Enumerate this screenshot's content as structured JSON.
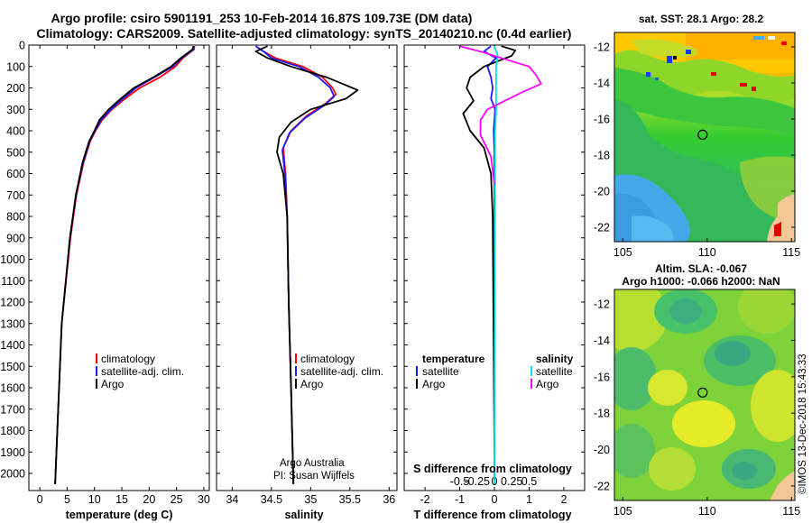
{
  "title": {
    "line1": "Argo profile: csiro 5901191_253 10-Feb-2014 16.87S 109.73E (DM data)",
    "line2": "Climatology: CARS2009. Satellite-adjusted climatology: synTS_20140210.nc (0.4d earlier)"
  },
  "colors": {
    "climatology": "#ff0000",
    "satellite": "#1a1aff",
    "argo": "#000000",
    "salinity_satellite": "#00e5ee",
    "salinity_argo": "#ff00ff"
  },
  "chart_data": [
    {
      "type": "line",
      "name": "temperature-profile",
      "xlabel": "temperature (deg C)",
      "ylabel": "",
      "xlim": [
        -2,
        31
      ],
      "ylim": [
        2080,
        0
      ],
      "xticks": [
        0,
        5,
        10,
        15,
        20,
        25,
        30
      ],
      "yticks": [
        0,
        100,
        200,
        300,
        400,
        500,
        600,
        700,
        800,
        900,
        1000,
        1100,
        1200,
        1300,
        1400,
        1500,
        1600,
        1700,
        1800,
        1900,
        2000
      ],
      "legend": [
        "climatology",
        "satellite-adj. clim.",
        "Argo"
      ],
      "series": [
        {
          "name": "climatology",
          "x": [
            28.3,
            28.2,
            26.2,
            24.8,
            22.0,
            18.3,
            15.6,
            13.2,
            11.4,
            10.2,
            9.2,
            8.0,
            6.7,
            5.6,
            4.0,
            2.8
          ],
          "y": [
            5,
            20,
            60,
            100,
            150,
            200,
            250,
            300,
            350,
            400,
            450,
            550,
            700,
            900,
            1300,
            2050
          ]
        },
        {
          "name": "satellite-adj. clim.",
          "x": [
            28.2,
            28.1,
            26.0,
            24.3,
            21.0,
            17.6,
            15.2,
            13.0,
            11.2,
            10.1,
            9.1,
            7.9,
            6.6,
            5.5,
            4.0,
            2.8
          ],
          "y": [
            5,
            20,
            60,
            100,
            150,
            200,
            250,
            300,
            350,
            400,
            450,
            550,
            700,
            900,
            1300,
            2050
          ]
        },
        {
          "name": "Argo",
          "x": [
            28.1,
            27.9,
            25.8,
            24.0,
            20.8,
            17.2,
            14.8,
            12.6,
            10.9,
            10.0,
            9.0,
            7.8,
            6.6,
            5.5,
            4.0,
            2.8
          ],
          "y": [
            5,
            20,
            60,
            100,
            150,
            200,
            250,
            300,
            350,
            400,
            450,
            550,
            700,
            900,
            1300,
            2050
          ]
        }
      ]
    },
    {
      "type": "line",
      "name": "salinity-profile",
      "xlabel": "salinity",
      "xlim": [
        33.8,
        36.1
      ],
      "ylim": [
        2080,
        0
      ],
      "xticks": [
        34,
        34.5,
        35,
        35.5,
        36
      ],
      "legend": [
        "climatology",
        "satellite-adj. clim.",
        "Argo"
      ],
      "series": [
        {
          "name": "climatology",
          "x": [
            34.3,
            34.4,
            34.55,
            34.9,
            35.15,
            35.28,
            35.32,
            35.2,
            34.95,
            34.75,
            34.65,
            34.68,
            34.7,
            34.72,
            34.75,
            34.78
          ],
          "y": [
            5,
            30,
            60,
            100,
            150,
            200,
            230,
            270,
            330,
            400,
            480,
            600,
            800,
            1200,
            1600,
            2050
          ]
        },
        {
          "name": "satellite-adj. clim.",
          "x": [
            34.3,
            34.4,
            34.5,
            34.85,
            35.1,
            35.25,
            35.3,
            35.18,
            34.93,
            34.73,
            34.64,
            34.67,
            34.7,
            34.72,
            34.75,
            34.78
          ],
          "y": [
            5,
            30,
            60,
            100,
            150,
            200,
            240,
            280,
            340,
            410,
            490,
            600,
            800,
            1200,
            1600,
            2050
          ]
        },
        {
          "name": "Argo",
          "x": [
            34.45,
            34.3,
            34.45,
            34.75,
            35.2,
            35.6,
            35.45,
            35.0,
            34.75,
            34.6,
            34.57,
            34.65,
            34.7,
            34.72,
            34.75,
            34.78
          ],
          "y": [
            5,
            30,
            60,
            100,
            150,
            210,
            250,
            300,
            360,
            430,
            500,
            600,
            800,
            1200,
            1600,
            2050
          ]
        }
      ],
      "credits": [
        "Argo Australia",
        "PI: Susan Wijffels"
      ]
    },
    {
      "type": "line",
      "name": "difference-profile",
      "xlabel": "T difference from climatology",
      "x2label": "S difference from climatology",
      "xlim": [
        -2.6,
        2.6
      ],
      "ylim": [
        2080,
        0
      ],
      "xticks": [
        -2,
        -1,
        0,
        1,
        2
      ],
      "xtick_labels": [
        "-2",
        "-1",
        "0",
        "1",
        "2"
      ],
      "x2ticks": [
        -1,
        -0.5,
        0,
        0.5,
        1
      ],
      "x2tick_labels": [
        "-0.5",
        "-0.25",
        "0",
        "0.25",
        "0.5"
      ],
      "legend_groups": [
        {
          "title": "temperature",
          "items": [
            "satellite",
            "Argo"
          ]
        },
        {
          "title": "salinity",
          "items": [
            "satellite",
            "Argo"
          ]
        }
      ],
      "series": [
        {
          "name": "T satellite",
          "x": [
            -0.1,
            -0.3,
            0.05,
            -0.2,
            -0.1,
            -0.05,
            -0.1,
            0.02,
            -0.02,
            0.0,
            0.0,
            0.0
          ],
          "y": [
            5,
            30,
            60,
            100,
            150,
            200,
            250,
            300,
            400,
            500,
            800,
            2050
          ]
        },
        {
          "name": "T Argo",
          "x": [
            0.2,
            0.6,
            0.5,
            -0.3,
            -0.7,
            -0.8,
            -0.6,
            -0.9,
            -0.7,
            -0.3,
            -0.1,
            -0.05,
            0.0
          ],
          "y": [
            5,
            25,
            50,
            100,
            150,
            200,
            260,
            320,
            400,
            480,
            600,
            800,
            1900
          ]
        },
        {
          "name": "S satellite",
          "x": [
            0.0,
            0.1,
            0.05,
            0.05,
            0.05,
            0.02,
            0.02,
            0.0
          ],
          "y": [
            5,
            50,
            100,
            200,
            300,
            400,
            600,
            2050
          ]
        },
        {
          "name": "S Argo",
          "x": [
            -1.0,
            -0.4,
            0.2,
            1.0,
            1.2,
            1.35,
            0.8,
            -0.2,
            -0.4,
            -0.4,
            -0.1,
            0.0
          ],
          "y": [
            5,
            30,
            60,
            100,
            140,
            180,
            220,
            300,
            350,
            420,
            520,
            650
          ]
        }
      ]
    },
    {
      "type": "heatmap",
      "name": "sst-map",
      "title": "sat. SST: 28.1  Argo: 28.2",
      "xlim": [
        104.5,
        115.2
      ],
      "ylim": [
        -22.8,
        -11.2
      ],
      "xticks": [
        105,
        110,
        115
      ],
      "yticks": [
        -12,
        -14,
        -16,
        -18,
        -20,
        -22
      ],
      "marker": {
        "lon": 109.73,
        "lat": -16.87
      }
    },
    {
      "type": "heatmap",
      "name": "sla-map",
      "title_line1": "Altim. SLA: -0.067",
      "title_line2": "Argo h1000: -0.066 h2000: NaN",
      "xlim": [
        104.5,
        115.2
      ],
      "ylim": [
        -22.8,
        -11.2
      ],
      "xticks": [
        105,
        110,
        115
      ],
      "yticks": [
        -12,
        -14,
        -16,
        -18,
        -20,
        -22
      ],
      "marker": {
        "lon": 109.73,
        "lat": -16.87
      }
    }
  ],
  "legend_text": {
    "climatology": "climatology",
    "satellite_adj": "satellite-adj. clim.",
    "argo": "Argo",
    "temperature": "temperature",
    "salinity": "salinity",
    "satellite": "satellite"
  },
  "watermark": "©IMOS 13-Dec-2018 15:43:33"
}
